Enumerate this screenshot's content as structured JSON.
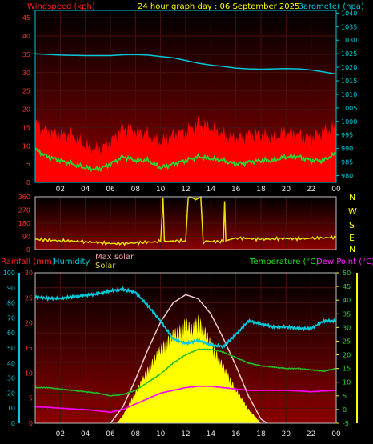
{
  "header": {
    "left": "Windspeed (kph)",
    "center": "24 hour graph day : 06 September 2025",
    "right": "Barometer (hpa)"
  },
  "compass": [
    "N",
    "W",
    "S",
    "E",
    "N"
  ],
  "bottom_labels": {
    "rainfall": "Rainfall (mm)",
    "humidity": "Humidity",
    "max_solar": "Max solar",
    "solar": "Solar",
    "temperature": "Temperature (°C)",
    "dew_point": "Dew Point (°C)"
  },
  "colors": {
    "windspeed_label": "#ff2020",
    "barometer": "#00c8d8",
    "header": "#ffff00",
    "wind_avg": "#30d030",
    "gust_fill": "#ff0000",
    "direction": "#e8e000",
    "humidity": "#00c8d8",
    "temperature": "#20c020",
    "dew_point": "#ff00ff",
    "max_solar": "#f0c8c8",
    "solar": "#ffff00",
    "panel_top": "#000000",
    "panel_bottom": "#8b0000"
  },
  "chart_data": [
    {
      "type": "area",
      "title": "24 hour graph day : 06 September 2025",
      "x_ticks": [
        "02",
        "04",
        "06",
        "08",
        "10",
        "12",
        "14",
        "16",
        "18",
        "20",
        "22",
        "00"
      ],
      "x_range_hours": [
        0,
        24
      ],
      "left_axis": {
        "label": "Windspeed (kph)",
        "ticks": [
          0,
          5,
          10,
          15,
          20,
          25,
          30,
          35,
          40,
          45
        ],
        "range": [
          0,
          47
        ]
      },
      "right_axis": {
        "label": "Barometer (hpa)",
        "ticks": [
          980,
          985,
          990,
          995,
          1000,
          1005,
          1010,
          1015,
          1020,
          1025,
          1030,
          1035,
          1040
        ],
        "range": [
          977.5,
          1041
        ]
      },
      "series": [
        {
          "name": "Barometer (hpa)",
          "axis": "right",
          "style": "line",
          "x": [
            0,
            2,
            4,
            6,
            7,
            8,
            9,
            10,
            11,
            12,
            13,
            14,
            15,
            16,
            17,
            18,
            19,
            20,
            21,
            22,
            23,
            24
          ],
          "y": [
            1025,
            1024.5,
            1024.3,
            1024.3,
            1024.6,
            1024.7,
            1024.5,
            1024,
            1023.5,
            1022.5,
            1021.5,
            1020.8,
            1020.3,
            1019.7,
            1019.4,
            1019.3,
            1019.4,
            1019.5,
            1019.4,
            1019,
            1018.3,
            1017.5
          ]
        },
        {
          "name": "Gust",
          "axis": "left",
          "style": "area",
          "x": [
            0,
            1,
            2,
            3,
            4,
            5,
            6,
            7,
            8,
            9,
            10,
            11,
            12,
            13,
            14,
            15,
            16,
            17,
            18,
            19,
            20,
            21,
            22,
            23,
            24
          ],
          "y": [
            16,
            14,
            13,
            13,
            10,
            9,
            11,
            15,
            14,
            13,
            11,
            13,
            14,
            16,
            15,
            13,
            12,
            13,
            13,
            12,
            14,
            13,
            12,
            14,
            15
          ]
        },
        {
          "name": "Wind speed",
          "axis": "left",
          "style": "line",
          "x": [
            0,
            1,
            2,
            3,
            4,
            5,
            6,
            7,
            8,
            9,
            10,
            11,
            12,
            13,
            14,
            15,
            16,
            17,
            18,
            19,
            20,
            21,
            22,
            23,
            24
          ],
          "y": [
            9,
            7,
            6,
            5,
            4,
            3.5,
            5,
            7,
            6,
            6,
            4,
            5,
            6,
            7,
            6.5,
            6,
            5,
            5.5,
            6,
            6,
            7,
            7,
            6,
            6,
            8
          ]
        }
      ],
      "grid": true
    },
    {
      "type": "scatter",
      "title": "Wind direction",
      "left_axis": {
        "ticks": [
          0,
          90,
          180,
          270,
          360
        ],
        "range": [
          0,
          360
        ]
      },
      "right_axis": {
        "ticks": [
          "N",
          "W",
          "S",
          "E",
          "N"
        ]
      },
      "series": [
        {
          "name": "Direction",
          "style": "line",
          "x": [
            0,
            2,
            4,
            6,
            8,
            10,
            10.2,
            10.3,
            10.5,
            11,
            12,
            12.2,
            12.3,
            12.6,
            12.8,
            13,
            13.2,
            13.4,
            13.6,
            14,
            15,
            15.1,
            15.2,
            16,
            18,
            20,
            22,
            24
          ],
          "y": [
            70,
            60,
            55,
            40,
            45,
            55,
            350,
            60,
            55,
            60,
            60,
            350,
            360,
            350,
            340,
            350,
            360,
            40,
            60,
            55,
            55,
            330,
            60,
            80,
            70,
            75,
            75,
            85
          ]
        }
      ],
      "grid": true
    },
    {
      "type": "line",
      "title": "",
      "x_ticks": [
        "02",
        "04",
        "06",
        "08",
        "10",
        "12",
        "14",
        "16",
        "18",
        "20",
        "22",
        "00"
      ],
      "x_range_hours": [
        0,
        24
      ],
      "left_axis_outer": {
        "label": "Rainfall (mm)",
        "ticks": [
          0,
          10,
          20,
          30,
          40,
          50,
          60,
          70,
          80,
          90,
          100
        ],
        "range": [
          0,
          100
        ]
      },
      "left_axis_inner": {
        "label": "Humidity",
        "ticks": [
          0,
          5,
          10,
          15,
          20,
          25,
          30
        ],
        "range": [
          0,
          30
        ]
      },
      "right_axis_outer": {
        "label": "Temperature (°C)",
        "ticks": [
          -5,
          0,
          5,
          10,
          15,
          20,
          25,
          30,
          35,
          40,
          45,
          50
        ],
        "range": [
          -5,
          50
        ]
      },
      "right_axis_inner": {
        "label": "Dew Point (°C)",
        "ticks": [
          0,
          100,
          200,
          300,
          400,
          500,
          600,
          700,
          800,
          900,
          1000,
          1100
        ],
        "range": [
          0,
          1100
        ]
      },
      "series": [
        {
          "name": "Humidity",
          "axis": "left_outer",
          "style": "line",
          "x": [
            0,
            1,
            2,
            3,
            4,
            5,
            6,
            7,
            8,
            9,
            10,
            11,
            12,
            13,
            14,
            15,
            16,
            17,
            18,
            19,
            20,
            21,
            22,
            23,
            24
          ],
          "y": [
            84,
            83,
            83,
            84,
            85,
            86,
            88,
            89,
            87,
            78,
            68,
            56,
            53,
            55,
            52,
            51,
            59,
            68,
            66,
            64,
            64,
            63,
            63,
            68,
            68
          ]
        },
        {
          "name": "Temperature (°C)",
          "axis": "right_outer",
          "style": "line",
          "x": [
            0,
            1,
            2,
            3,
            4,
            5,
            6,
            7,
            8,
            9,
            10,
            11,
            12,
            13,
            14,
            15,
            16,
            17,
            18,
            19,
            20,
            21,
            22,
            23,
            24
          ],
          "y": [
            8,
            8,
            7.5,
            7,
            6.5,
            6,
            5,
            5.5,
            7,
            10,
            13,
            17,
            20,
            22,
            22,
            21,
            19,
            17,
            16,
            15.5,
            15,
            15,
            14.5,
            14,
            15
          ]
        },
        {
          "name": "Dew Point (°C)",
          "axis": "right_outer",
          "style": "line",
          "x": [
            0,
            1,
            2,
            3,
            4,
            5,
            6,
            7,
            8,
            9,
            10,
            11,
            12,
            13,
            14,
            15,
            16,
            17,
            18,
            19,
            20,
            21,
            22,
            23,
            24
          ],
          "y": [
            1,
            0.8,
            0.5,
            0.2,
            0,
            -0.5,
            -1,
            0,
            2,
            4,
            6,
            7,
            8,
            8.5,
            8.5,
            8,
            7.5,
            7,
            7,
            7,
            7,
            6.8,
            6.5,
            6.8,
            7
          ]
        },
        {
          "name": "Max solar",
          "axis": "right_inner",
          "style": "line",
          "x": [
            6,
            7,
            8,
            9,
            10,
            11,
            12,
            13,
            14,
            15,
            16,
            17,
            18,
            18.5
          ],
          "y": [
            0,
            120,
            320,
            540,
            740,
            880,
            940,
            910,
            800,
            620,
            420,
            200,
            30,
            0
          ]
        },
        {
          "name": "Solar",
          "axis": "right_inner",
          "style": "area",
          "x": [
            6.5,
            7,
            8,
            9,
            10,
            11,
            11.5,
            12,
            12.5,
            13,
            13.5,
            14,
            15,
            16,
            17,
            18
          ],
          "y": [
            0,
            60,
            240,
            420,
            580,
            690,
            720,
            780,
            730,
            800,
            720,
            620,
            440,
            260,
            110,
            0
          ]
        }
      ],
      "grid": true
    }
  ]
}
